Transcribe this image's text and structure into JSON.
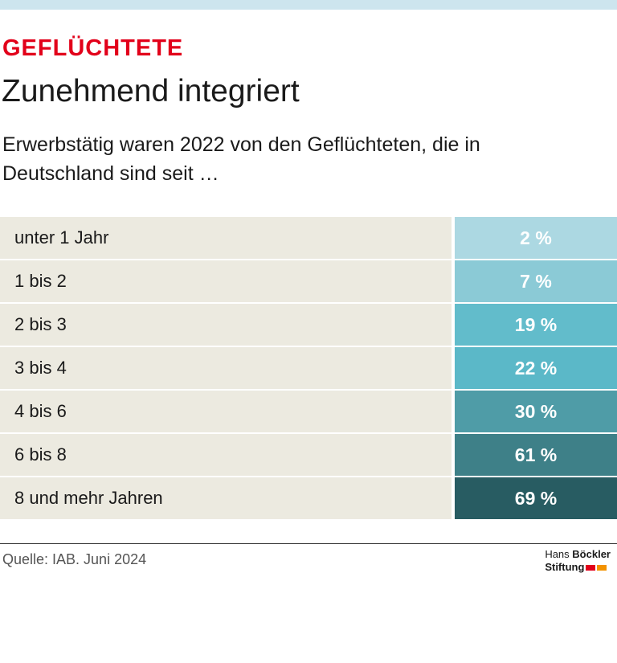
{
  "header": {
    "kicker": "GEFLÜCHTETE",
    "title": "Zunehmend integriert",
    "subtitle": "Erwerbstätig waren 2022 von den Geflüchteten, die in Deutschland sind seit …"
  },
  "table": {
    "rows": [
      [
        "unter 1 Jahr",
        "2 %"
      ],
      [
        "1 bis 2",
        "7 %"
      ],
      [
        "2 bis 3",
        "19 %"
      ],
      [
        "3 bis 4",
        "22 %"
      ],
      [
        "4 bis 6",
        "30 %"
      ],
      [
        "6 bis 8",
        "61 %"
      ],
      [
        "8 und mehr Jahren",
        "69 %"
      ]
    ],
    "colors": [
      "#acd8e2",
      "#8bcad6",
      "#62bccb",
      "#5bb8c8",
      "#4f9ca7",
      "#3e8088",
      "#285c62"
    ]
  },
  "footer": {
    "source": "Quelle: IAB. Juni 2024",
    "logo": {
      "first": "Hans",
      "second": "Böckler",
      "third": "Stiftung"
    }
  }
}
